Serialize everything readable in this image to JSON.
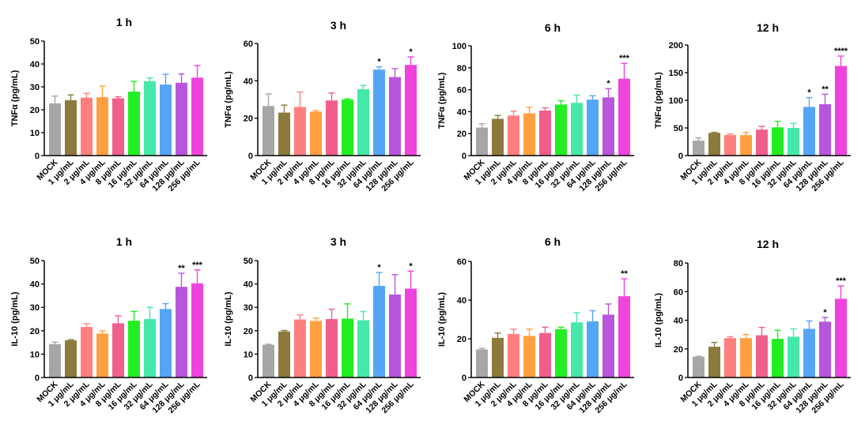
{
  "palette": [
    "#a6a6a6",
    "#8c7a3c",
    "#ff7f7f",
    "#ffa040",
    "#f05f8c",
    "#22ee22",
    "#45e8a8",
    "#55a5f5",
    "#b855dd",
    "#ee44dd"
  ],
  "chart_data": [
    {
      "type": "bar",
      "title": "1 h",
      "ylabel": "TNFα (pg/mL)",
      "ylim": [
        0,
        50
      ],
      "yticks": [
        0,
        10,
        20,
        30,
        40,
        50
      ],
      "categories": [
        "MOCK",
        "1 μg/mL",
        "2 μg/mL",
        "4 μg/mL",
        "8 μg/mL",
        "16 μg/mL",
        "32 μg/mL",
        "64 μg/mL",
        "128 μg/mL",
        "256 μg/mL"
      ],
      "values": [
        22.8,
        24.2,
        25.3,
        25.5,
        25.0,
        27.9,
        32.5,
        31.0,
        31.8,
        34.0
      ],
      "errors": [
        3.2,
        2.3,
        1.9,
        4.8,
        0.7,
        4.5,
        1.4,
        4.5,
        3.8,
        5.3
      ],
      "significance": [
        "",
        "",
        "",
        "",
        "",
        "",
        "",
        "",
        "",
        ""
      ]
    },
    {
      "type": "bar",
      "title": "3 h",
      "ylabel": "TNFα (pg/mL)",
      "ylim": [
        0,
        60
      ],
      "yticks": [
        0,
        20,
        40,
        60
      ],
      "categories": [
        "MOCK",
        "1 μg/mL",
        "2 μg/mL",
        "4 μg/mL",
        "8 μg/mL",
        "16 μg/mL",
        "32 μg/mL",
        "64 μg/mL",
        "128 μg/mL",
        "256 μg/mL"
      ],
      "values": [
        26.5,
        23.0,
        26.0,
        23.5,
        29.5,
        30.0,
        35.5,
        46.0,
        42.0,
        48.5
      ],
      "errors": [
        6.5,
        4.0,
        8.0,
        0.6,
        4.0,
        0.4,
        2.0,
        1.5,
        4.5,
        4.3
      ],
      "significance": [
        "",
        "",
        "",
        "",
        "",
        "",
        "",
        "*",
        "",
        "*"
      ]
    },
    {
      "type": "bar",
      "title": "6 h",
      "ylabel": "TNFα (pg/mL)",
      "ylim": [
        0,
        100
      ],
      "yticks": [
        0,
        20,
        40,
        60,
        80,
        100
      ],
      "categories": [
        "MOCK",
        "1 μg/mL",
        "2 μg/mL",
        "4 μg/mL",
        "8 μg/mL",
        "16 μg/mL",
        "32 μg/mL",
        "64 μg/mL",
        "128 μg/mL",
        "256 μg/mL"
      ],
      "values": [
        25.5,
        33.5,
        36.5,
        38.5,
        41.0,
        46.5,
        48.0,
        51.0,
        53.0,
        70.0
      ],
      "errors": [
        3.5,
        3.0,
        4.0,
        5.5,
        2.5,
        3.5,
        7.0,
        3.5,
        8.0,
        14.0
      ],
      "significance": [
        "",
        "",
        "",
        "",
        "",
        "",
        "",
        "",
        "*",
        "***"
      ]
    },
    {
      "type": "bar",
      "title": "12 h",
      "ylabel": "TNFα (pg/mL)",
      "ylim": [
        0,
        200
      ],
      "yticks": [
        0,
        50,
        100,
        150,
        200
      ],
      "categories": [
        "MOCK",
        "1 μg/mL",
        "2 μg/mL",
        "4 μg/mL",
        "8 μg/mL",
        "16 μg/mL",
        "32 μg/mL",
        "64 μg/mL",
        "128 μg/mL",
        "256 μg/mL"
      ],
      "values": [
        27.0,
        41.0,
        37.0,
        37.0,
        47.0,
        51.0,
        50.0,
        88.0,
        93.0,
        162.0
      ],
      "errors": [
        5.0,
        1.0,
        2.0,
        5.0,
        6.0,
        11.0,
        8.0,
        17.0,
        18.0,
        18.0
      ],
      "significance": [
        "",
        "",
        "",
        "",
        "",
        "",
        "",
        "*",
        "**",
        "****"
      ]
    },
    {
      "type": "bar",
      "title": "1 h",
      "ylabel": "IL-10 (pg/mL)",
      "ylim": [
        0,
        50
      ],
      "yticks": [
        0,
        10,
        20,
        30,
        40,
        50
      ],
      "categories": [
        "MOCK",
        "1 μg/mL",
        "2 μg/mL",
        "4 μg/mL",
        "8 μg/mL",
        "16 μg/mL",
        "32 μg/mL",
        "64 μg/mL",
        "128 μg/mL",
        "256 μg/mL"
      ],
      "values": [
        14.3,
        15.9,
        21.6,
        18.8,
        23.2,
        24.3,
        25.0,
        29.3,
        38.8,
        40.3
      ],
      "errors": [
        0.8,
        0.3,
        1.4,
        1.2,
        3.2,
        4.0,
        5.0,
        2.3,
        5.8,
        5.7
      ],
      "significance": [
        "",
        "",
        "",
        "",
        "",
        "",
        "",
        "",
        "**",
        "***"
      ]
    },
    {
      "type": "bar",
      "title": "3 h",
      "ylabel": "IL-10 (pg/mL)",
      "ylim": [
        0,
        50
      ],
      "yticks": [
        0,
        10,
        20,
        30,
        40,
        50
      ],
      "categories": [
        "MOCK",
        "1 μg/mL",
        "2 μg/mL",
        "4 μg/mL",
        "8 μg/mL",
        "16 μg/mL",
        "32 μg/mL",
        "64 μg/mL",
        "128 μg/mL",
        "256 μg/mL"
      ],
      "values": [
        14.0,
        19.7,
        24.8,
        24.2,
        25.0,
        25.2,
        24.5,
        39.2,
        35.5,
        38.0
      ],
      "errors": [
        0.2,
        0.4,
        2.0,
        1.2,
        4.2,
        6.3,
        3.7,
        5.7,
        8.5,
        7.5
      ],
      "significance": [
        "",
        "",
        "",
        "",
        "",
        "",
        "",
        "*",
        "",
        "*"
      ]
    },
    {
      "type": "bar",
      "title": "6 h",
      "ylabel": "IL-10 (pg/mL)",
      "ylim": [
        0,
        60
      ],
      "yticks": [
        0,
        20,
        40,
        60
      ],
      "categories": [
        "MOCK",
        "1 μg/mL",
        "2 μg/mL",
        "4 μg/mL",
        "8 μg/mL",
        "16 μg/mL",
        "32 μg/mL",
        "64 μg/mL",
        "128 μg/mL",
        "256 μg/mL"
      ],
      "values": [
        14.5,
        20.5,
        22.5,
        21.5,
        23.0,
        25.0,
        28.5,
        29.0,
        32.5,
        42.0
      ],
      "errors": [
        0.6,
        2.5,
        2.5,
        3.5,
        3.0,
        1.0,
        5.0,
        5.5,
        5.5,
        9.0
      ],
      "significance": [
        "",
        "",
        "",
        "",
        "",
        "",
        "",
        "",
        "",
        "**"
      ]
    },
    {
      "type": "bar",
      "title": "12 h",
      "ylabel": "IL-10 (pg/mL)",
      "ylim": [
        0,
        80
      ],
      "yticks": [
        0,
        20,
        40,
        60,
        80
      ],
      "categories": [
        "MOCK",
        "1 μg/mL",
        "2 μg/mL",
        "4 μg/mL",
        "8 μg/mL",
        "16 μg/mL",
        "32 μg/mL",
        "64 μg/mL",
        "128 μg/mL",
        "256 μg/mL"
      ],
      "values": [
        14.5,
        21.5,
        27.5,
        27.5,
        29.5,
        27.0,
        28.5,
        34.0,
        39.0,
        55.0
      ],
      "errors": [
        0.4,
        3.0,
        1.0,
        2.5,
        5.5,
        6.0,
        5.5,
        5.5,
        3.0,
        9.0
      ],
      "significance": [
        "",
        "",
        "",
        "",
        "",
        "",
        "",
        "",
        "*",
        "***"
      ]
    }
  ]
}
